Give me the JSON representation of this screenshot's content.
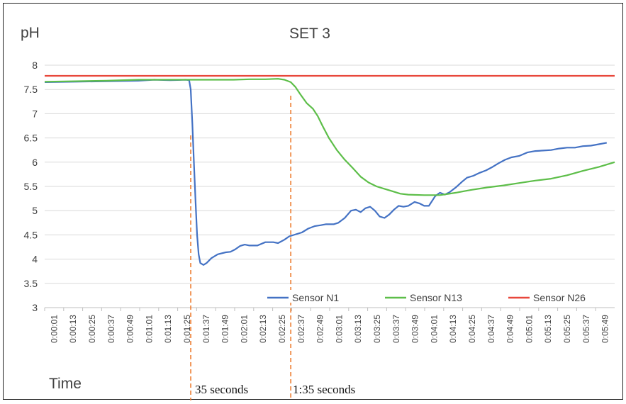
{
  "chart_data": {
    "type": "line",
    "title": "SET 3",
    "ylabel": "pH",
    "xlabel": "Time",
    "ylim": [
      3,
      8
    ],
    "y_ticks": [
      "3",
      "3.5",
      "4",
      "4.5",
      "5",
      "5.5",
      "6",
      "6.5",
      "7",
      "7.5",
      "8"
    ],
    "x_ticks": [
      "0:00:01",
      "0:00:13",
      "0:00:25",
      "0:00:37",
      "0:00:49",
      "0:01:01",
      "0:01:13",
      "0:01:25",
      "0:01:37",
      "0:01:49",
      "0:02:01",
      "0:02:13",
      "0:02:25",
      "0:02:37",
      "0:02:49",
      "0:03:01",
      "0:03:13",
      "0:03:25",
      "0:03:37",
      "0:03:49",
      "0:04:01",
      "0:04:13",
      "0:04:25",
      "0:04:37",
      "0:04:49",
      "0:05:01",
      "0:05:13",
      "0:05:25",
      "0:05:37",
      "0:05:49"
    ],
    "x_range_seconds": [
      1,
      360
    ],
    "series": [
      {
        "name": "Sensor N1",
        "color": "#4472C4",
        "points": [
          [
            1,
            7.65
          ],
          [
            20,
            7.66
          ],
          [
            40,
            7.67
          ],
          [
            60,
            7.68
          ],
          [
            70,
            7.7
          ],
          [
            80,
            7.69
          ],
          [
            90,
            7.7
          ],
          [
            92,
            7.69
          ],
          [
            93,
            7.5
          ],
          [
            94,
            6.8
          ],
          [
            95,
            6.0
          ],
          [
            96,
            5.2
          ],
          [
            97,
            4.5
          ],
          [
            98,
            4.1
          ],
          [
            99,
            3.92
          ],
          [
            101,
            3.88
          ],
          [
            103,
            3.92
          ],
          [
            106,
            4.02
          ],
          [
            110,
            4.1
          ],
          [
            115,
            4.14
          ],
          [
            118,
            4.15
          ],
          [
            121,
            4.2
          ],
          [
            124,
            4.27
          ],
          [
            127,
            4.3
          ],
          [
            130,
            4.28
          ],
          [
            135,
            4.28
          ],
          [
            140,
            4.35
          ],
          [
            145,
            4.35
          ],
          [
            148,
            4.33
          ],
          [
            152,
            4.4
          ],
          [
            155,
            4.47
          ],
          [
            160,
            4.52
          ],
          [
            163,
            4.55
          ],
          [
            167,
            4.63
          ],
          [
            171,
            4.68
          ],
          [
            175,
            4.7
          ],
          [
            178,
            4.72
          ],
          [
            183,
            4.72
          ],
          [
            186,
            4.75
          ],
          [
            190,
            4.85
          ],
          [
            194,
            5.0
          ],
          [
            197,
            5.02
          ],
          [
            200,
            4.97
          ],
          [
            203,
            5.05
          ],
          [
            206,
            5.08
          ],
          [
            209,
            5.0
          ],
          [
            212,
            4.88
          ],
          [
            215,
            4.85
          ],
          [
            218,
            4.92
          ],
          [
            221,
            5.02
          ],
          [
            224,
            5.1
          ],
          [
            227,
            5.08
          ],
          [
            230,
            5.1
          ],
          [
            234,
            5.18
          ],
          [
            237,
            5.15
          ],
          [
            240,
            5.1
          ],
          [
            243,
            5.1
          ],
          [
            247,
            5.3
          ],
          [
            250,
            5.37
          ],
          [
            253,
            5.33
          ],
          [
            256,
            5.38
          ],
          [
            260,
            5.48
          ],
          [
            264,
            5.6
          ],
          [
            267,
            5.68
          ],
          [
            271,
            5.72
          ],
          [
            275,
            5.78
          ],
          [
            279,
            5.83
          ],
          [
            283,
            5.9
          ],
          [
            287,
            5.98
          ],
          [
            291,
            6.05
          ],
          [
            295,
            6.1
          ],
          [
            300,
            6.13
          ],
          [
            305,
            6.2
          ],
          [
            310,
            6.23
          ],
          [
            315,
            6.24
          ],
          [
            320,
            6.25
          ],
          [
            325,
            6.28
          ],
          [
            330,
            6.3
          ],
          [
            335,
            6.3
          ],
          [
            340,
            6.33
          ],
          [
            345,
            6.34
          ],
          [
            350,
            6.37
          ],
          [
            355,
            6.4
          ]
        ]
      },
      {
        "name": "Sensor N13",
        "color": "#5DBE49",
        "points": [
          [
            1,
            7.66
          ],
          [
            40,
            7.68
          ],
          [
            60,
            7.7
          ],
          [
            90,
            7.7
          ],
          [
            120,
            7.7
          ],
          [
            130,
            7.71
          ],
          [
            140,
            7.71
          ],
          [
            148,
            7.72
          ],
          [
            152,
            7.7
          ],
          [
            156,
            7.65
          ],
          [
            159,
            7.55
          ],
          [
            162,
            7.4
          ],
          [
            166,
            7.22
          ],
          [
            170,
            7.1
          ],
          [
            173,
            6.95
          ],
          [
            176,
            6.75
          ],
          [
            180,
            6.5
          ],
          [
            185,
            6.25
          ],
          [
            190,
            6.05
          ],
          [
            195,
            5.88
          ],
          [
            200,
            5.7
          ],
          [
            205,
            5.58
          ],
          [
            210,
            5.5
          ],
          [
            215,
            5.45
          ],
          [
            220,
            5.4
          ],
          [
            225,
            5.35
          ],
          [
            230,
            5.33
          ],
          [
            240,
            5.32
          ],
          [
            250,
            5.32
          ],
          [
            260,
            5.37
          ],
          [
            265,
            5.4
          ],
          [
            270,
            5.43
          ],
          [
            280,
            5.48
          ],
          [
            290,
            5.52
          ],
          [
            300,
            5.57
          ],
          [
            310,
            5.62
          ],
          [
            320,
            5.66
          ],
          [
            330,
            5.73
          ],
          [
            340,
            5.82
          ],
          [
            350,
            5.9
          ],
          [
            355,
            5.95
          ],
          [
            360,
            6.0
          ]
        ]
      },
      {
        "name": "Sensor N26",
        "color": "#E8473B",
        "points": [
          [
            1,
            7.78
          ],
          [
            360,
            7.78
          ]
        ]
      }
    ],
    "annotations": [
      {
        "label": "35 seconds",
        "x_seconds": 93
      },
      {
        "label": "1:35 seconds",
        "x_seconds": 156
      }
    ],
    "legend": {
      "placement": "bottom-right"
    },
    "grid": true
  }
}
